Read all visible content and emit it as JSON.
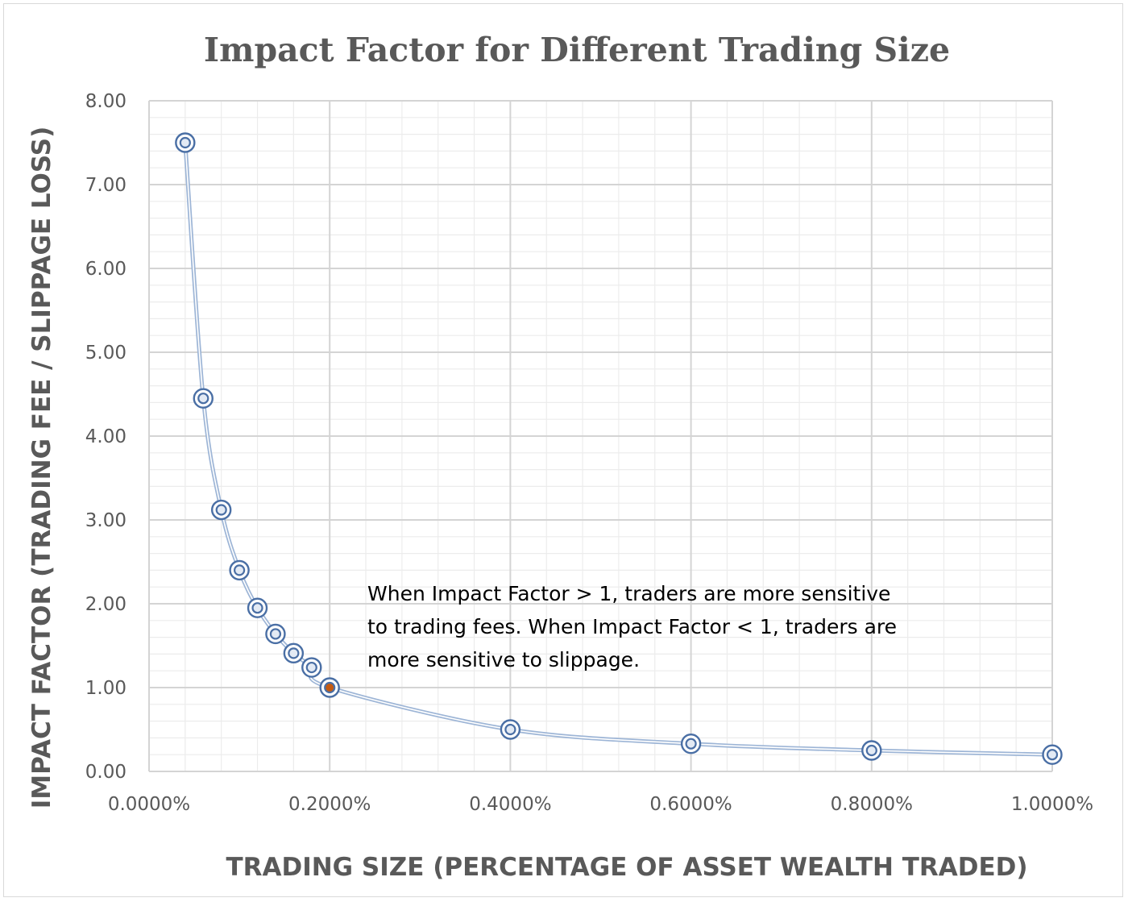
{
  "chart_data": {
    "type": "scatter",
    "title": "Impact Factor for Different Trading Size",
    "xlabel": "TRADING SIZE (PERCENTAGE OF ASSET WEALTH TRADED)",
    "ylabel": "IMPACT FACTOR (TRADING FEE / SLIPPAGE LOSS)",
    "xlim": [
      0,
      0.01
    ],
    "ylim": [
      0,
      8
    ],
    "x_ticks": [
      "0.0000%",
      "0.2000%",
      "0.4000%",
      "0.6000%",
      "0.8000%",
      "1.0000%"
    ],
    "y_ticks": [
      "0.00",
      "1.00",
      "2.00",
      "3.00",
      "4.00",
      "5.00",
      "6.00",
      "7.00",
      "8.00"
    ],
    "grid": true,
    "smoothed_line": true,
    "series_color": "#4a6fa5",
    "line_color": "#9db5d6",
    "highlight_color": "#c55a11",
    "points": [
      {
        "x": 0.0004,
        "y": 7.5
      },
      {
        "x": 0.0006,
        "y": 4.45
      },
      {
        "x": 0.0008,
        "y": 3.12
      },
      {
        "x": 0.001,
        "y": 2.4
      },
      {
        "x": 0.0012,
        "y": 1.95
      },
      {
        "x": 0.0014,
        "y": 1.64
      },
      {
        "x": 0.0016,
        "y": 1.41
      },
      {
        "x": 0.0018,
        "y": 1.24
      },
      {
        "x": 0.002,
        "y": 1.0,
        "highlight": true
      },
      {
        "x": 0.004,
        "y": 0.5
      },
      {
        "x": 0.006,
        "y": 0.33
      },
      {
        "x": 0.008,
        "y": 0.25
      },
      {
        "x": 0.01,
        "y": 0.2
      }
    ],
    "annotation": [
      "When Impact Factor > 1, traders are more sensitive",
      "to trading fees. When Impact Factor < 1, traders are",
      "more sensitive to slippage."
    ]
  }
}
